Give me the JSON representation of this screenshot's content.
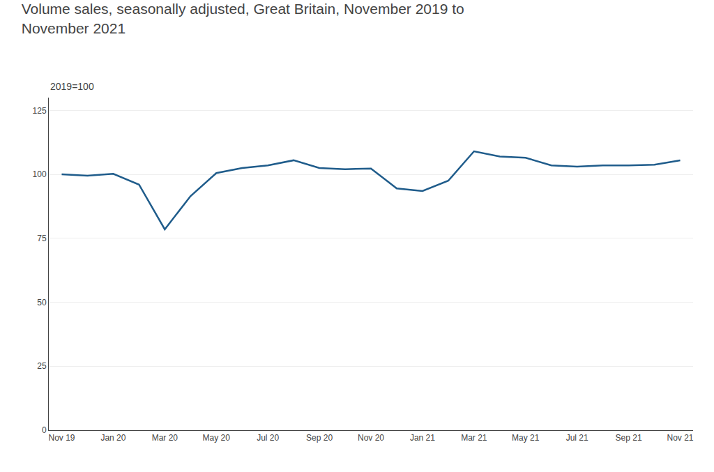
{
  "chart_data": {
    "type": "line",
    "title": "Volume sales, seasonally adjusted, Great Britain, November 2019 to\nNovember 2021",
    "subtitle": "2019=100",
    "categories": [
      "Nov 19",
      null,
      "Jan 20",
      null,
      "Mar 20",
      null,
      "May 20",
      null,
      "Jul 20",
      null,
      "Sep 20",
      null,
      "Nov 20",
      null,
      "Jan 21",
      null,
      "Mar 21",
      null,
      "May 21",
      null,
      "Jul 21",
      null,
      "Sep 21",
      null,
      "Nov 21"
    ],
    "values": [
      100.0,
      99.5,
      100.2,
      96.0,
      78.5,
      91.5,
      100.5,
      102.5,
      103.5,
      105.5,
      102.5,
      102.0,
      102.3,
      94.5,
      93.5,
      97.5,
      109.0,
      107.0,
      106.5,
      103.5,
      103.0,
      103.5,
      103.5,
      103.8,
      105.5
    ],
    "color": "#1f5c8b",
    "ylim": [
      0,
      130
    ],
    "yticks": [
      0,
      25,
      50,
      75,
      100,
      125
    ],
    "grid": "y"
  }
}
